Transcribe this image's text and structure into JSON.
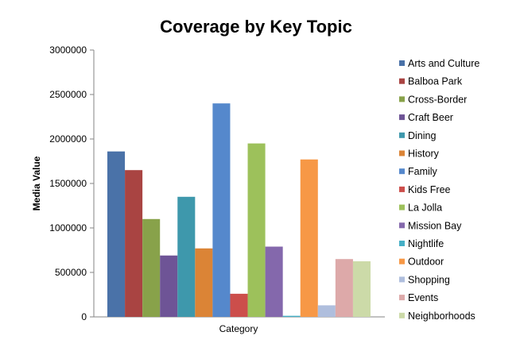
{
  "chart_data": {
    "type": "bar",
    "title": "Coverage by Key Topic",
    "xlabel": "Category",
    "ylabel": "Media Value",
    "ylim": [
      0,
      3000000
    ],
    "yticks": [
      0,
      500000,
      1000000,
      1500000,
      2000000,
      2500000,
      3000000
    ],
    "grid": false,
    "legend_position": "right",
    "categories": [
      "Category"
    ],
    "series": [
      {
        "name": "Arts and Culture",
        "values": [
          1860000
        ],
        "color": "#4A72A8"
      },
      {
        "name": "Balboa Park",
        "values": [
          1650000
        ],
        "color": "#A94442"
      },
      {
        "name": "Cross-Border",
        "values": [
          1100000
        ],
        "color": "#88A24A"
      },
      {
        "name": "Craft Beer",
        "values": [
          690000
        ],
        "color": "#6E5496"
      },
      {
        "name": "Dining",
        "values": [
          1350000
        ],
        "color": "#3E98AC"
      },
      {
        "name": "History",
        "values": [
          770000
        ],
        "color": "#DB8436"
      },
      {
        "name": "Family",
        "values": [
          2400000
        ],
        "color": "#5588CC"
      },
      {
        "name": "Kids Free",
        "values": [
          260000
        ],
        "color": "#CC4E4B"
      },
      {
        "name": "La Jolla",
        "values": [
          1950000
        ],
        "color": "#9DC15B"
      },
      {
        "name": "Mission Bay",
        "values": [
          790000
        ],
        "color": "#8468AC"
      },
      {
        "name": "Nightlife",
        "values": [
          12000
        ],
        "color": "#45AFC6"
      },
      {
        "name": "Outdoor",
        "values": [
          1770000
        ],
        "color": "#F79846"
      },
      {
        "name": "Shopping",
        "values": [
          130000
        ],
        "color": "#AFBEDD"
      },
      {
        "name": "Events",
        "values": [
          650000
        ],
        "color": "#DDA9A9"
      },
      {
        "name": "Neighborhoods",
        "values": [
          625000
        ],
        "color": "#CCDAA8"
      }
    ]
  }
}
